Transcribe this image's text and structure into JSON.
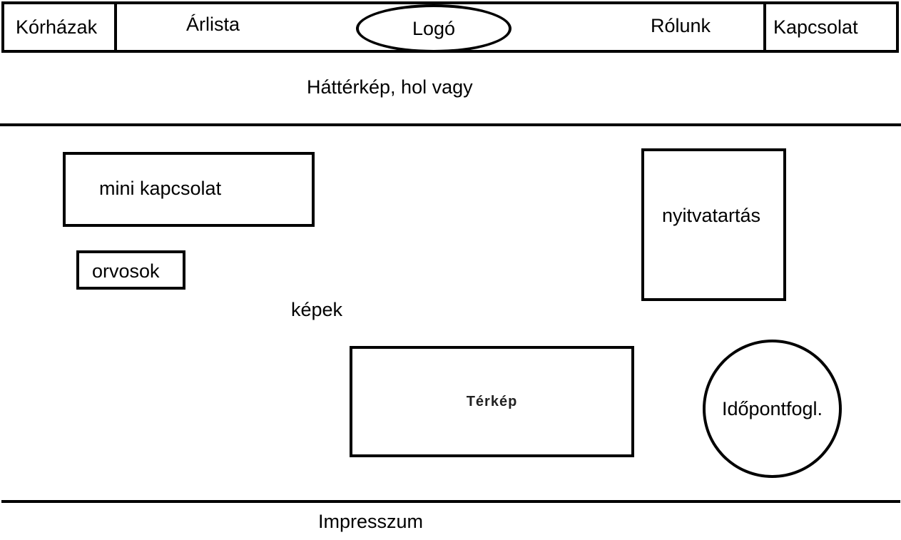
{
  "nav": {
    "hospitals": "Kórházak",
    "price_list": "Árlista",
    "logo": "Logó",
    "about": "Rólunk",
    "contact": "Kapcsolat"
  },
  "hero": {
    "text": "Háttérkép, hol vagy"
  },
  "main": {
    "mini_contact": "mini kapcsolat",
    "doctors": "orvosok",
    "images": "képek",
    "opening_hours": "nyitvatartás",
    "map": "Térkép",
    "appointment": "Időpontfogl."
  },
  "footer": {
    "imprint": "Impresszum"
  }
}
